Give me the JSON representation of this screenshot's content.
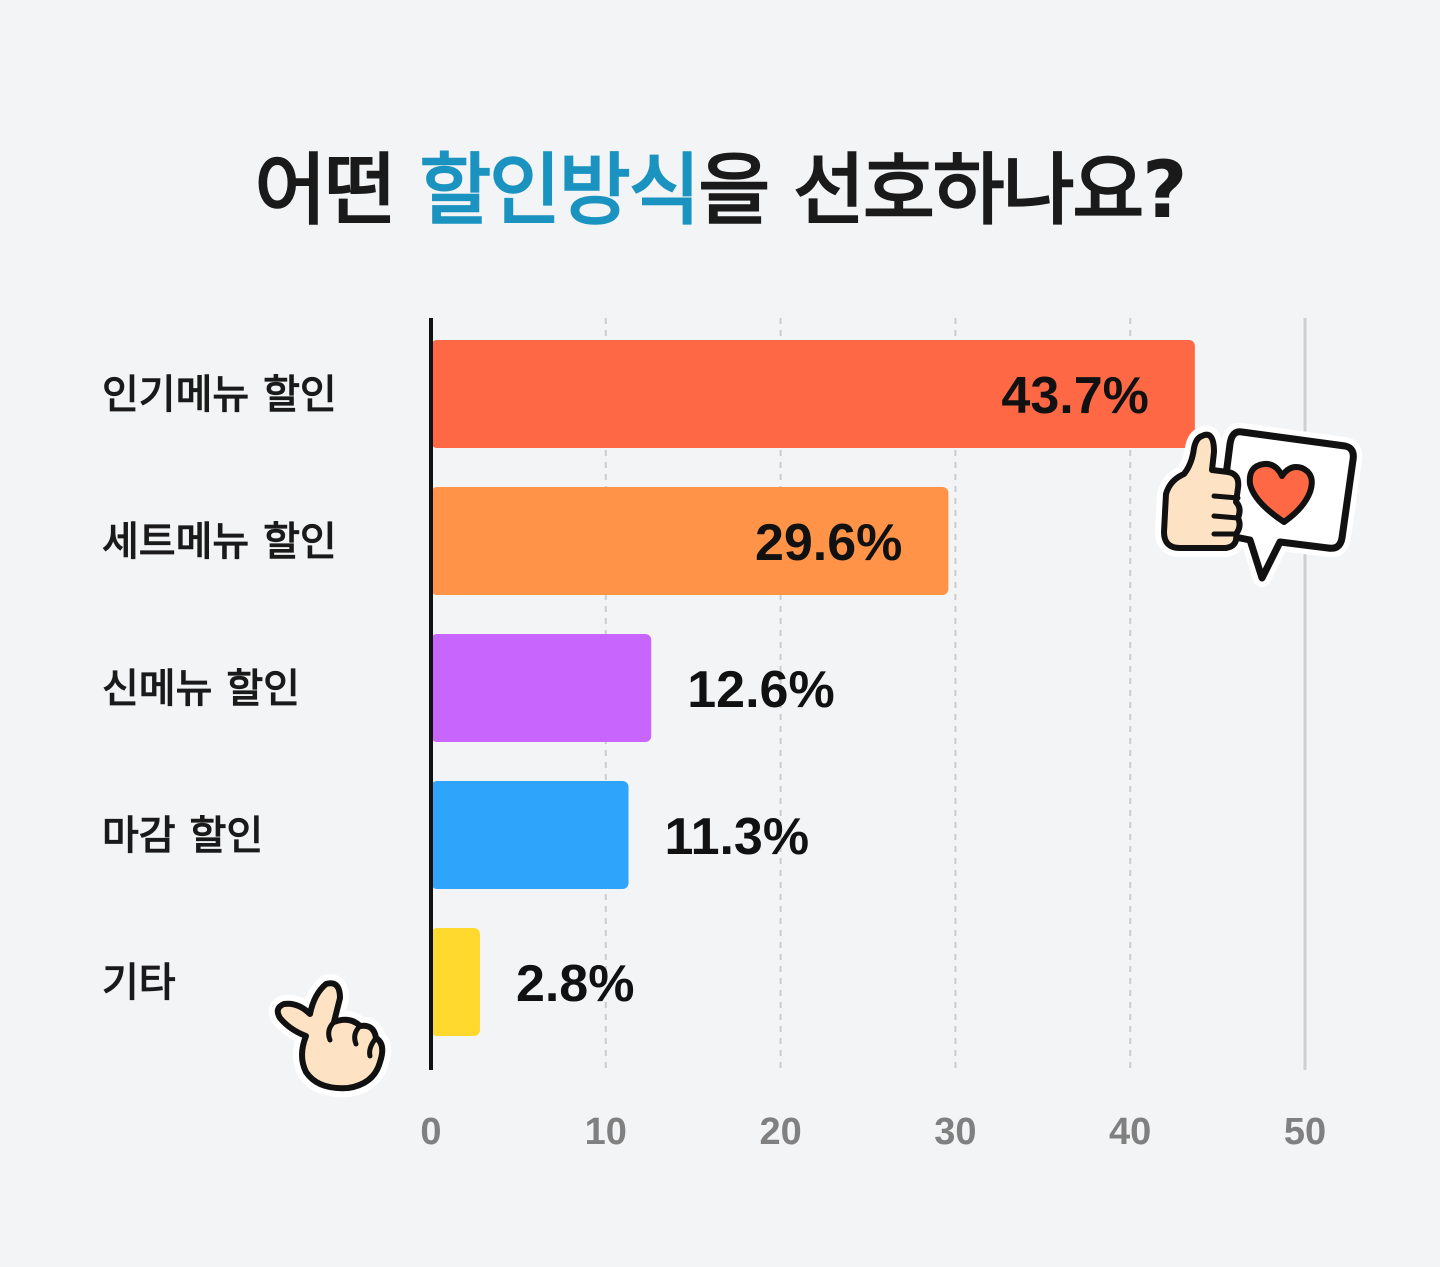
{
  "title": {
    "prefix": "어떤 ",
    "accent": "할인방식",
    "suffix": "을 선호하나요?"
  },
  "colors": {
    "background": "#f3f4f6",
    "title_accent": "#1a93c0",
    "text": "#1a1a1a",
    "tick_text": "#808080"
  },
  "stickers": [
    "thumbs-up-heart-bubble-icon",
    "finger-heart-icon"
  ],
  "chart_data": {
    "type": "bar",
    "orientation": "horizontal",
    "categories": [
      "인기메뉴 할인",
      "세트메뉴 할인",
      "신메뉴 할인",
      "마감 할인",
      "기타"
    ],
    "values": [
      43.7,
      29.6,
      12.6,
      11.3,
      2.8
    ],
    "value_labels": [
      "43.7%",
      "29.6%",
      "12.6%",
      "11.3%",
      "2.8%"
    ],
    "bar_colors": [
      "#ff6845",
      "#ff9448",
      "#c765fc",
      "#2ea5fb",
      "#ffd92d"
    ],
    "xlim": [
      0,
      50
    ],
    "xticks": [
      0,
      10,
      20,
      30,
      40,
      50
    ],
    "xtick_labels": [
      "0",
      "10",
      "20",
      "30",
      "40",
      "50"
    ],
    "grid": true
  }
}
